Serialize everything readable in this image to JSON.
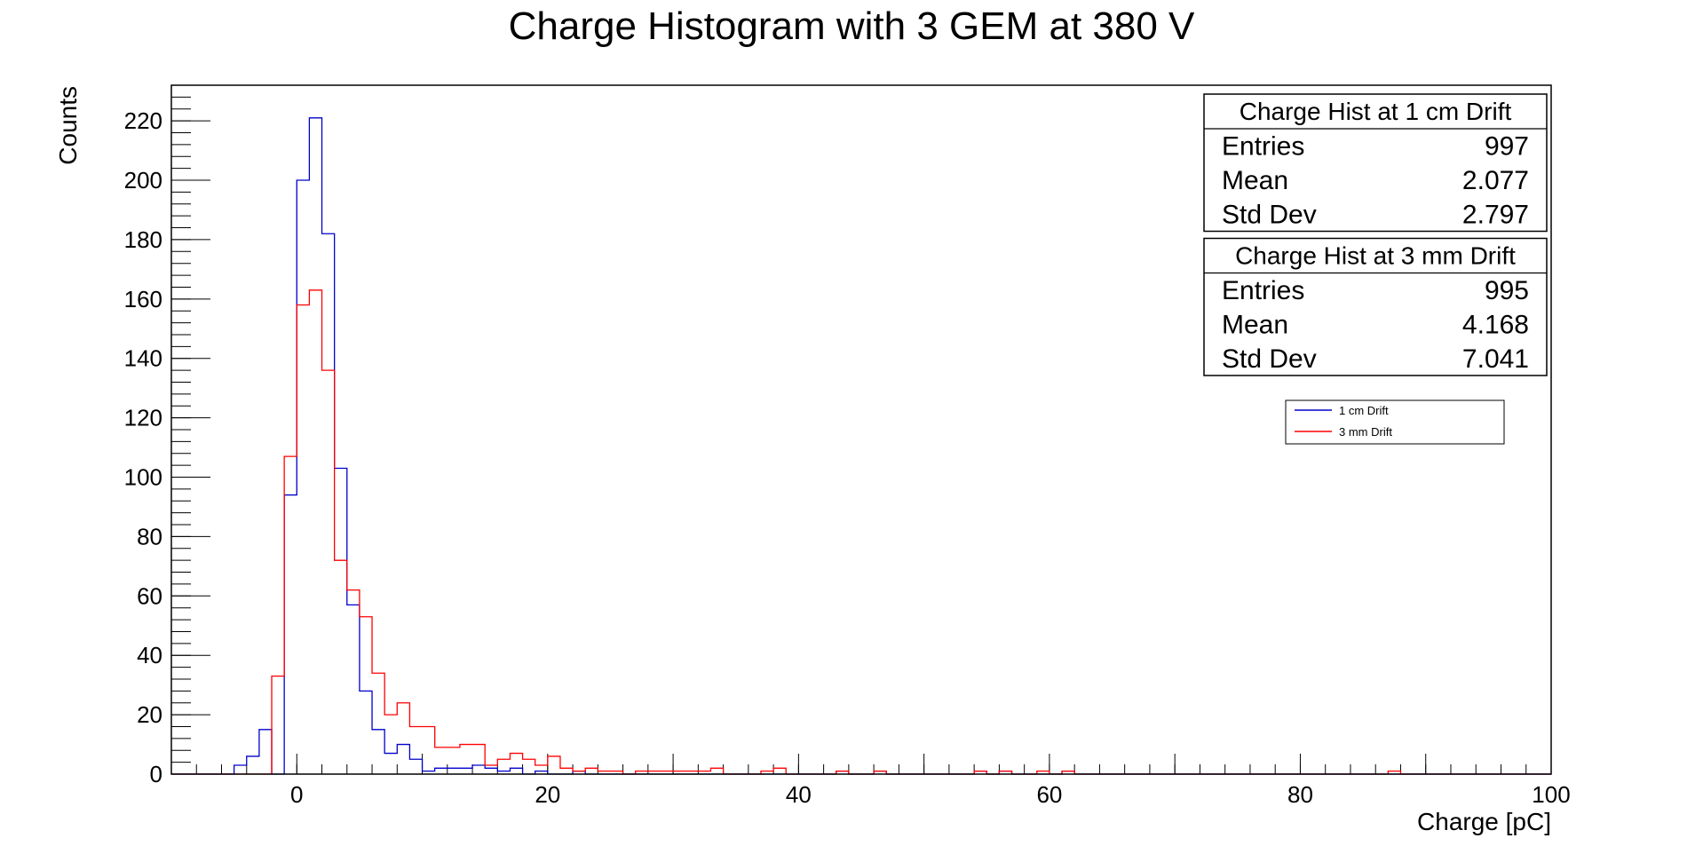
{
  "chart_data": {
    "type": "histogram",
    "title": "Charge Histogram with 3 GEM at 380 V",
    "xlabel": "Charge [pC]",
    "ylabel": "Counts",
    "xlim": [
      -10,
      100
    ],
    "ylim": [
      0,
      232
    ],
    "bin_width": 1,
    "x_ticks": [
      0,
      20,
      40,
      60,
      80,
      100
    ],
    "y_ticks": [
      0,
      20,
      40,
      60,
      80,
      100,
      120,
      140,
      160,
      180,
      200,
      220
    ],
    "grid": false,
    "series": [
      {
        "name": "1 cm Drift",
        "color": "#0000cc",
        "start": -5,
        "values": [
          3,
          6,
          15,
          0,
          94,
          200,
          221,
          182,
          103,
          57,
          28,
          15,
          7,
          10,
          5,
          1,
          2,
          2,
          2,
          3,
          2,
          1,
          2,
          0,
          1,
          0,
          0,
          1,
          0,
          0
        ]
      },
      {
        "name": "3 mm Drift",
        "color": "#ff0000",
        "start": -3,
        "values": [
          0,
          33,
          107,
          158,
          163,
          136,
          72,
          62,
          53,
          34,
          20,
          24,
          16,
          16,
          9,
          9,
          10,
          10,
          3,
          5,
          7,
          5,
          3,
          6,
          2,
          1,
          2,
          1,
          1,
          0,
          1,
          1,
          1,
          1,
          1,
          1,
          2,
          0,
          0,
          0,
          1,
          2
        ]
      }
    ],
    "sparse_bins": {
      "3 mm Drift": [
        [
          43,
          1
        ],
        [
          46,
          1
        ],
        [
          54,
          1
        ],
        [
          56,
          1
        ],
        [
          59,
          1
        ],
        [
          61,
          1
        ],
        [
          87,
          1
        ]
      ],
      "1 cm Drift": [
        [
          43,
          1
        ],
        [
          46,
          1
        ],
        [
          54,
          1
        ],
        [
          56,
          1
        ],
        [
          61,
          1
        ]
      ]
    },
    "stats_boxes": [
      {
        "title": "Charge Hist at 1 cm Drift",
        "rows": [
          {
            "label": "Entries",
            "value": "997"
          },
          {
            "label": "Mean",
            "value": "2.077"
          },
          {
            "label": "Std Dev",
            "value": "2.797"
          }
        ]
      },
      {
        "title": "Charge Hist at 3 mm Drift",
        "rows": [
          {
            "label": "Entries",
            "value": "995"
          },
          {
            "label": "Mean",
            "value": "4.168"
          },
          {
            "label": "Std Dev",
            "value": "7.041"
          }
        ]
      }
    ],
    "legend": {
      "placement": "top-right",
      "entries": [
        {
          "label": "1 cm Drift",
          "color": "#0000cc"
        },
        {
          "label": "3 mm Drift",
          "color": "#ff0000"
        }
      ]
    }
  }
}
